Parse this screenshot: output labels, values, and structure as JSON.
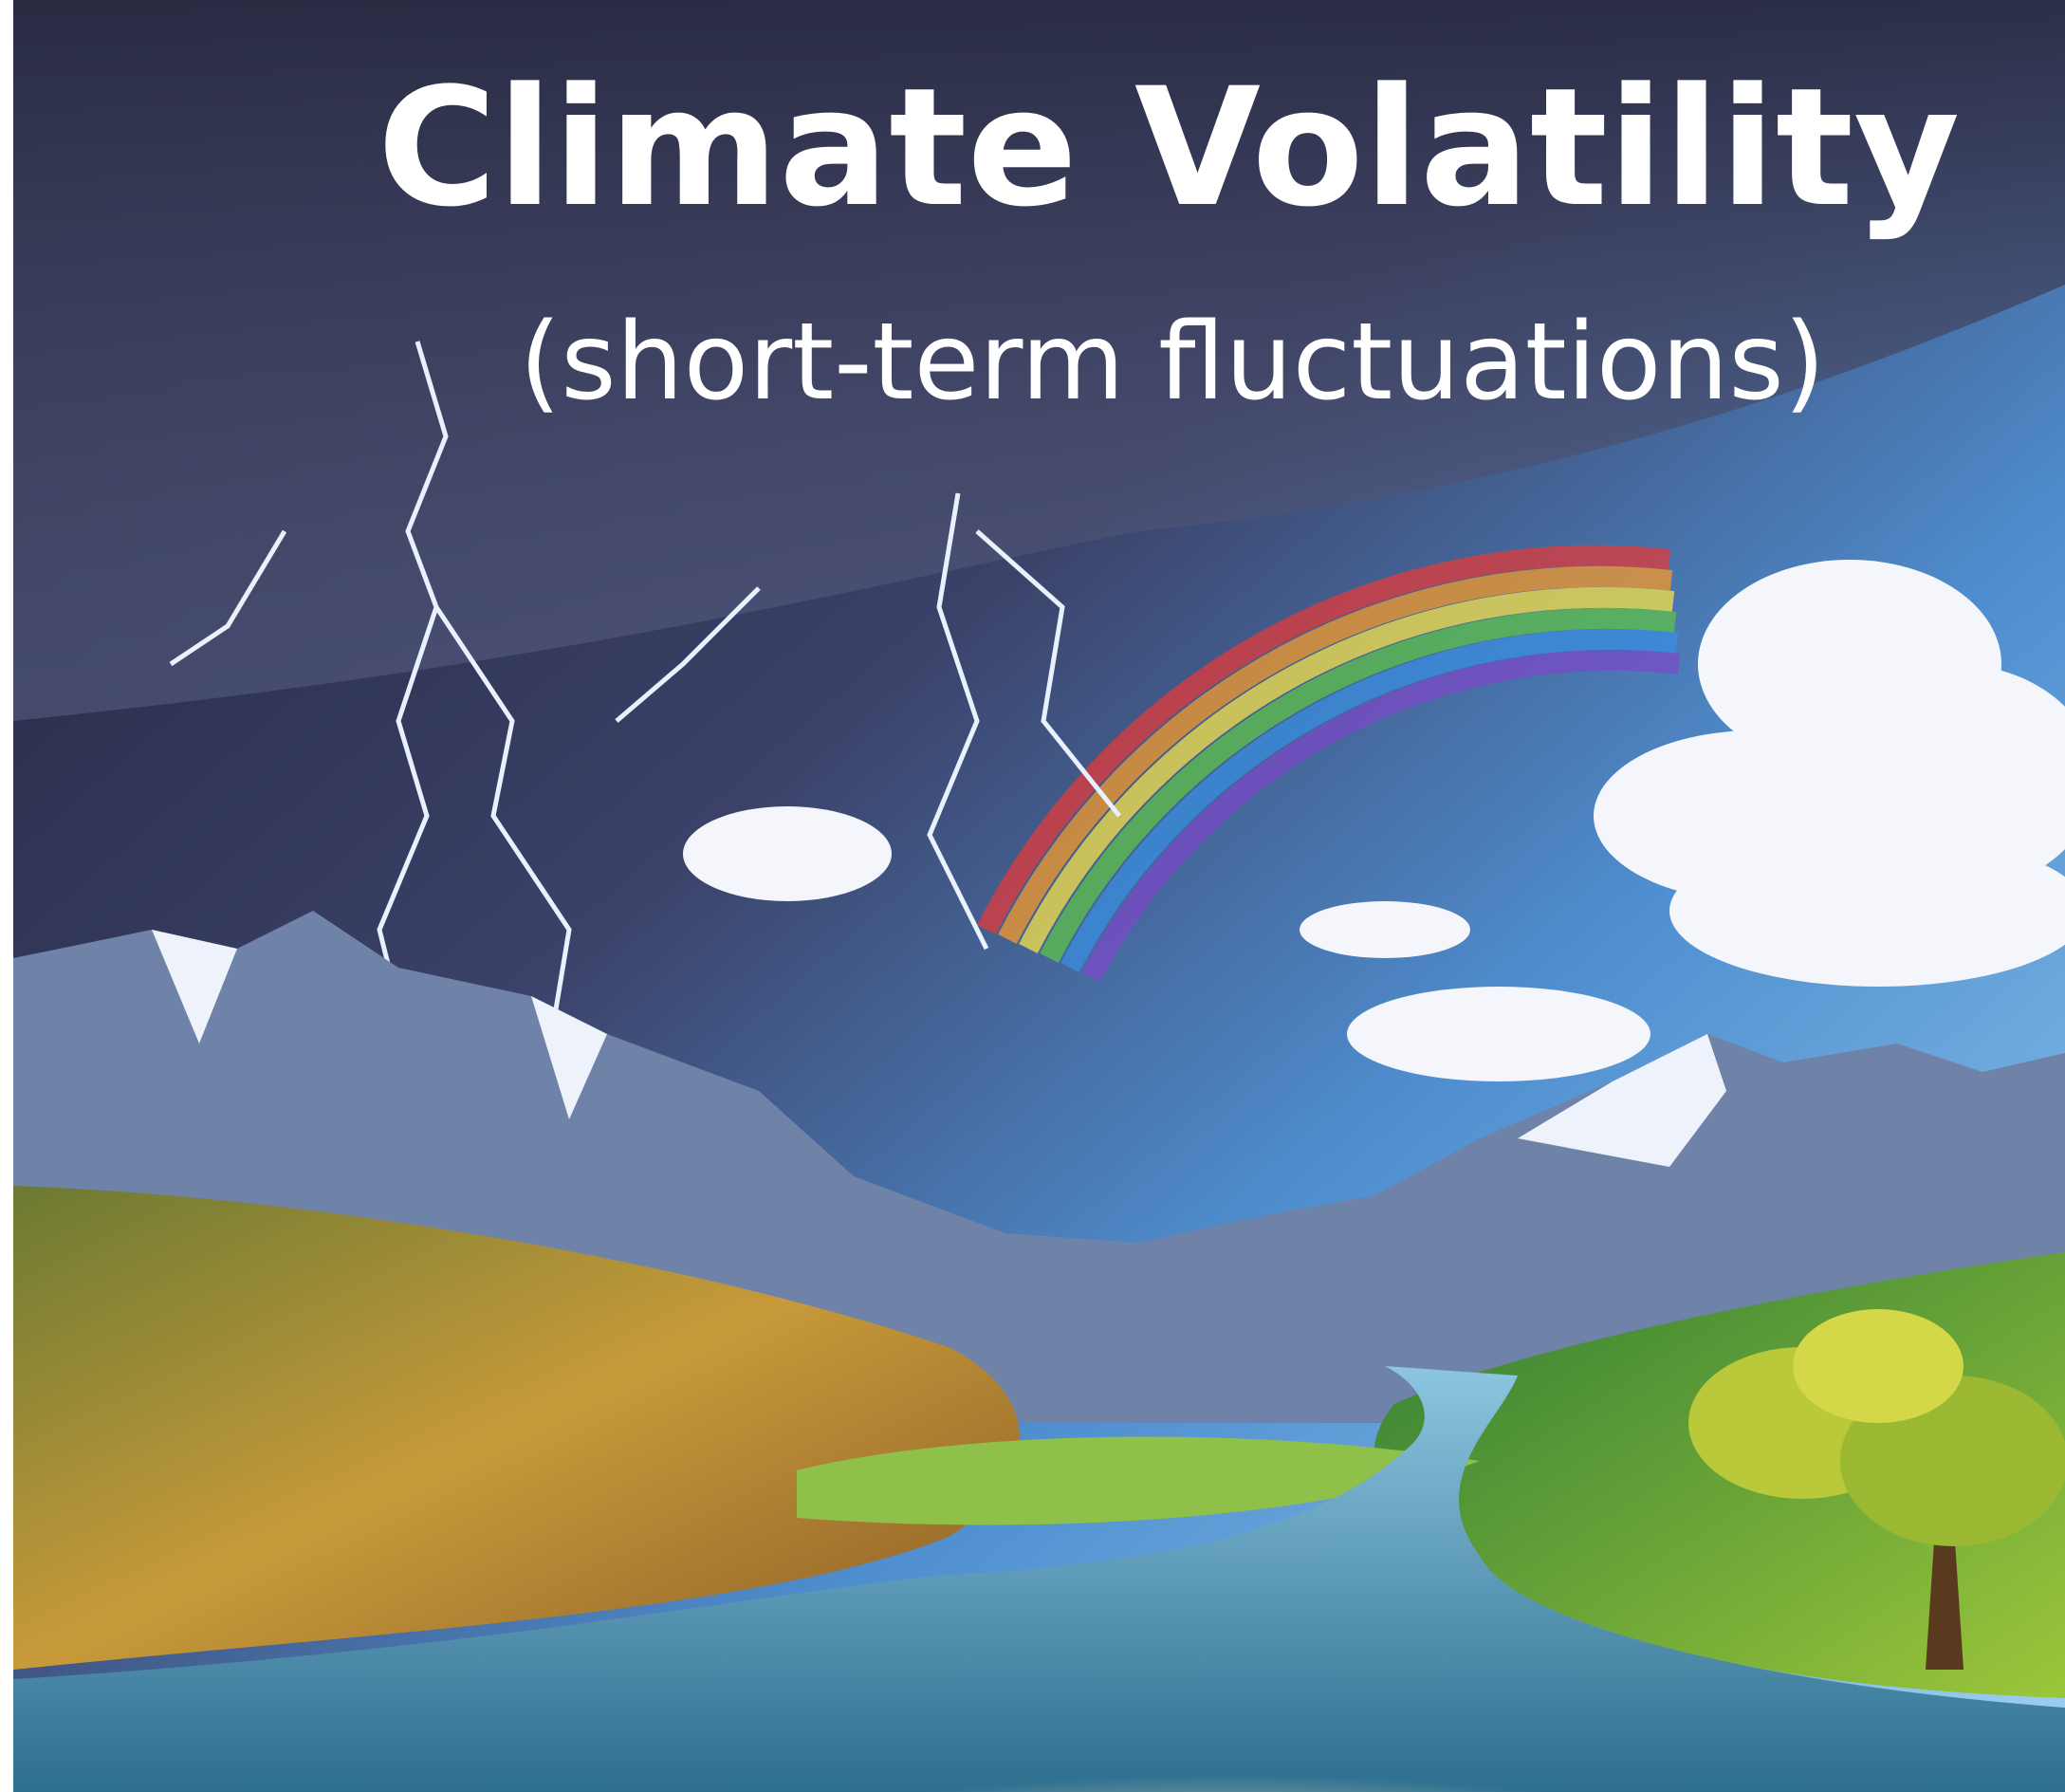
{
  "title": "Climate Volatility",
  "subtitle": "(short-term fluctuations)"
}
